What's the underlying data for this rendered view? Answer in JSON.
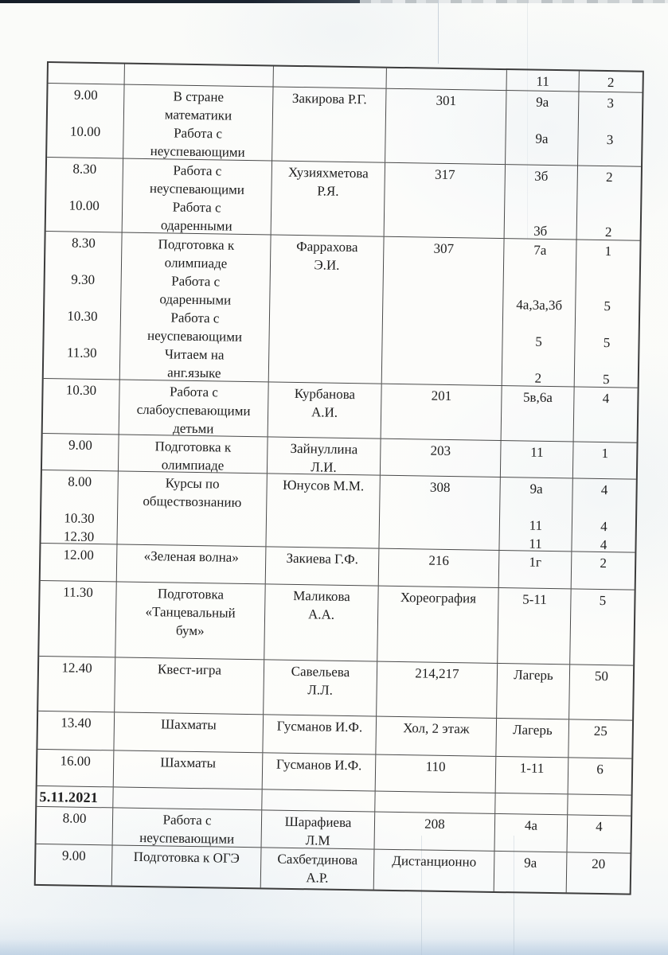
{
  "colors": {
    "paper": "#fcfcf9",
    "table_border": "#4a4a4a",
    "text": "#1d1d1d",
    "top_bar": "#1b2430",
    "bottom_tint": "#cfdeed"
  },
  "table": {
    "column_keys": [
      "time",
      "activity",
      "teacher",
      "room",
      "class",
      "count"
    ],
    "rows": [
      {
        "date": false,
        "cells": [
          [],
          [],
          [],
          [],
          [
            "11"
          ],
          [
            "2"
          ]
        ]
      },
      {
        "date": false,
        "cells": [
          [
            "9.00",
            "",
            "10.00"
          ],
          [
            "В стране",
            "математики",
            "Работа с",
            "неуспевающими"
          ],
          [
            "Закирова Р.Г."
          ],
          [
            "301"
          ],
          [
            "9а",
            "",
            "9а"
          ],
          [
            "3",
            "",
            "3"
          ]
        ]
      },
      {
        "date": false,
        "cells": [
          [
            "8.30",
            "",
            "10.00"
          ],
          [
            "Работа с",
            "неуспевающими",
            "Работа с",
            "одаренными"
          ],
          [
            "Хузияхметова",
            "Р.Я."
          ],
          [
            "317"
          ],
          [
            "3б",
            "",
            "",
            "3б"
          ],
          [
            "2",
            "",
            "",
            "2"
          ]
        ]
      },
      {
        "date": false,
        "cells": [
          [
            "8.30",
            "",
            "9.30",
            "",
            "10.30",
            "",
            "11.30"
          ],
          [
            "Подготовка к",
            "олимпиаде",
            "Работа с",
            "одаренными",
            "Работа с",
            "неуспевающими",
            "Читаем на",
            "анг.языке"
          ],
          [
            "Фаррахова",
            "Э.И."
          ],
          [
            "307"
          ],
          [
            "7а",
            "",
            "",
            "4а,3а,3б",
            "",
            "5",
            "",
            "2"
          ],
          [
            "1",
            "",
            "",
            "5",
            "",
            "5",
            "",
            "5"
          ]
        ]
      },
      {
        "date": false,
        "cells": [
          [
            "10.30"
          ],
          [
            "Работа с",
            "слабоуспевающими",
            "детьми"
          ],
          [
            "Курбанова",
            "А.И."
          ],
          [
            "201"
          ],
          [
            "5в,6а"
          ],
          [
            "4"
          ]
        ]
      },
      {
        "date": false,
        "cells": [
          [
            "9.00"
          ],
          [
            "Подготовка к",
            "олимпиаде"
          ],
          [
            "Зайнуллина",
            "Л.И."
          ],
          [
            "203"
          ],
          [
            "11"
          ],
          [
            "1"
          ]
        ]
      },
      {
        "date": false,
        "cells": [
          [
            "8.00",
            "",
            "10.30",
            "12.30"
          ],
          [
            "Курсы по",
            "обществознанию"
          ],
          [
            "Юнусов М.М."
          ],
          [
            "308"
          ],
          [
            "9а",
            "",
            "11",
            "11"
          ],
          [
            "4",
            "",
            "4",
            "4"
          ]
        ]
      },
      {
        "date": false,
        "cells": [
          [
            "12.00"
          ],
          [
            "«Зеленая волна»"
          ],
          [
            "Закиева Г.Ф."
          ],
          [
            "216"
          ],
          [
            "1г"
          ],
          [
            "2"
          ]
        ]
      },
      {
        "date": false,
        "cells": [
          [
            "11.30"
          ],
          [
            "Подготовка",
            "«Танцевальный",
            "бум»"
          ],
          [
            "Маликова",
            "А.А."
          ],
          [
            "Хореография"
          ],
          [
            "5-11"
          ],
          [
            "5"
          ]
        ]
      },
      {
        "date": false,
        "cells": [
          [
            "12.40"
          ],
          [
            "Квест-игра"
          ],
          [
            "Савельева",
            "Л.Л."
          ],
          [
            "214,217"
          ],
          [
            "Лагерь"
          ],
          [
            "50"
          ]
        ]
      },
      {
        "date": false,
        "cells": [
          [
            "13.40"
          ],
          [
            "Шахматы"
          ],
          [
            "Гусманов И.Ф."
          ],
          [
            "Хол, 2 этаж"
          ],
          [
            "Лагерь"
          ],
          [
            "25"
          ]
        ]
      },
      {
        "date": false,
        "cells": [
          [
            "16.00"
          ],
          [
            "Шахматы"
          ],
          [
            "Гусманов И.Ф."
          ],
          [
            "110"
          ],
          [
            "1-11"
          ],
          [
            "6"
          ]
        ]
      },
      {
        "date": true,
        "cells": [
          [
            "5.11.2021"
          ],
          [],
          [],
          [],
          [],
          []
        ]
      },
      {
        "date": false,
        "cells": [
          [
            "8.00"
          ],
          [
            "Работа с",
            "неуспевающими"
          ],
          [
            "Шарафиева",
            "Л.М"
          ],
          [
            "208"
          ],
          [
            "4а"
          ],
          [
            "4"
          ]
        ]
      },
      {
        "date": false,
        "cells": [
          [
            "9.00"
          ],
          [
            "Подготовка к ОГЭ"
          ],
          [
            "Сахбетдинова",
            "А.Р."
          ],
          [
            "Дистанционно"
          ],
          [
            "9а"
          ],
          [
            "20"
          ]
        ]
      }
    ]
  }
}
